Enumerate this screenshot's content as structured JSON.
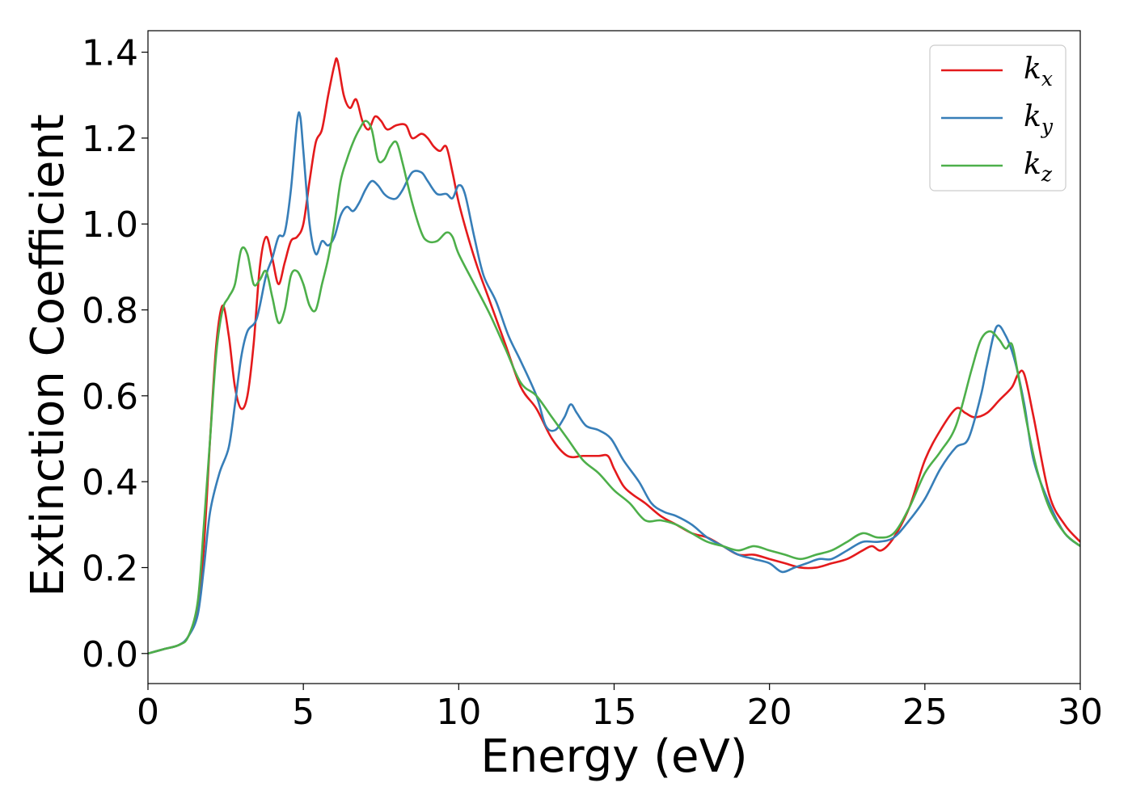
{
  "chart_data": {
    "type": "line",
    "xlabel": "Energy (eV)",
    "ylabel": "Extinction Coefficient",
    "xlim": [
      0,
      30
    ],
    "ylim": [
      -0.07,
      1.45
    ],
    "xticks": [
      0,
      5,
      10,
      15,
      20,
      25,
      30
    ],
    "xtick_labels": [
      "0",
      "5",
      "10",
      "15",
      "20",
      "25",
      "30"
    ],
    "yticks": [
      0.0,
      0.2,
      0.4,
      0.6,
      0.8,
      1.0,
      1.2,
      1.4
    ],
    "ytick_labels": [
      "0.0",
      "0.2",
      "0.4",
      "0.6",
      "0.8",
      "1.0",
      "1.2",
      "1.4"
    ],
    "grid": false,
    "legend_position": "top-right",
    "series": [
      {
        "name": "kx",
        "label_base": "k",
        "label_sub": "x",
        "color": "#e41a1c",
        "x": [
          0,
          0.5,
          1.0,
          1.3,
          1.6,
          1.8,
          2.0,
          2.2,
          2.4,
          2.6,
          2.8,
          3.0,
          3.2,
          3.4,
          3.6,
          3.8,
          4.0,
          4.2,
          4.4,
          4.6,
          4.8,
          5.0,
          5.2,
          5.4,
          5.6,
          5.8,
          6.0,
          6.1,
          6.3,
          6.5,
          6.7,
          6.9,
          7.1,
          7.3,
          7.5,
          7.7,
          8.0,
          8.3,
          8.5,
          8.8,
          9.0,
          9.2,
          9.4,
          9.6,
          9.8,
          10.0,
          10.3,
          10.6,
          11.0,
          11.5,
          12.0,
          12.5,
          13.0,
          13.5,
          14.0,
          14.5,
          14.8,
          15.0,
          15.3,
          15.6,
          16.0,
          16.5,
          17.0,
          17.5,
          18.0,
          18.5,
          19.0,
          19.5,
          20.0,
          20.5,
          21.0,
          21.5,
          22.0,
          22.5,
          23.0,
          23.3,
          23.6,
          24.0,
          24.5,
          25.0,
          25.5,
          26.0,
          26.3,
          26.6,
          27.0,
          27.4,
          27.8,
          28.0,
          28.2,
          28.5,
          29.0,
          29.5,
          30.0
        ],
        "y": [
          0.0,
          0.01,
          0.02,
          0.04,
          0.1,
          0.25,
          0.5,
          0.72,
          0.81,
          0.74,
          0.62,
          0.57,
          0.6,
          0.72,
          0.9,
          0.97,
          0.92,
          0.86,
          0.91,
          0.96,
          0.97,
          1.0,
          1.1,
          1.19,
          1.22,
          1.3,
          1.37,
          1.38,
          1.3,
          1.27,
          1.29,
          1.24,
          1.22,
          1.25,
          1.24,
          1.22,
          1.23,
          1.23,
          1.2,
          1.21,
          1.2,
          1.18,
          1.17,
          1.18,
          1.12,
          1.05,
          0.97,
          0.9,
          0.82,
          0.72,
          0.62,
          0.57,
          0.5,
          0.46,
          0.46,
          0.46,
          0.46,
          0.43,
          0.39,
          0.37,
          0.35,
          0.32,
          0.3,
          0.28,
          0.27,
          0.25,
          0.23,
          0.23,
          0.22,
          0.21,
          0.2,
          0.2,
          0.21,
          0.22,
          0.24,
          0.25,
          0.24,
          0.27,
          0.34,
          0.45,
          0.52,
          0.57,
          0.56,
          0.55,
          0.56,
          0.59,
          0.62,
          0.65,
          0.65,
          0.55,
          0.37,
          0.3,
          0.26
        ]
      },
      {
        "name": "ky",
        "label_base": "k",
        "label_sub": "y",
        "color": "#377eb8",
        "x": [
          0,
          0.5,
          1.0,
          1.3,
          1.6,
          1.8,
          2.0,
          2.3,
          2.6,
          2.8,
          3.0,
          3.2,
          3.5,
          3.8,
          4.0,
          4.2,
          4.4,
          4.6,
          4.8,
          4.9,
          5.0,
          5.2,
          5.4,
          5.6,
          5.8,
          6.0,
          6.2,
          6.4,
          6.6,
          6.8,
          7.0,
          7.2,
          7.4,
          7.6,
          7.8,
          8.0,
          8.2,
          8.5,
          8.8,
          9.0,
          9.3,
          9.6,
          9.8,
          10.0,
          10.2,
          10.5,
          10.8,
          11.2,
          11.6,
          12.0,
          12.5,
          12.8,
          13.1,
          13.4,
          13.6,
          13.8,
          14.1,
          14.5,
          14.9,
          15.3,
          15.8,
          16.2,
          16.6,
          17.0,
          17.5,
          18.0,
          18.5,
          19.0,
          19.5,
          20.0,
          20.4,
          20.8,
          21.2,
          21.6,
          22.0,
          22.5,
          23.0,
          23.5,
          24.0,
          24.5,
          25.0,
          25.5,
          26.0,
          26.4,
          26.8,
          27.0,
          27.3,
          27.6,
          27.9,
          28.2,
          28.5,
          29.0,
          29.5,
          30.0
        ],
        "y": [
          0.0,
          0.01,
          0.02,
          0.04,
          0.09,
          0.2,
          0.33,
          0.42,
          0.48,
          0.58,
          0.69,
          0.75,
          0.78,
          0.88,
          0.92,
          0.97,
          0.98,
          1.08,
          1.24,
          1.25,
          1.17,
          1.0,
          0.93,
          0.96,
          0.95,
          0.97,
          1.02,
          1.04,
          1.03,
          1.05,
          1.08,
          1.1,
          1.09,
          1.07,
          1.06,
          1.06,
          1.08,
          1.12,
          1.12,
          1.1,
          1.07,
          1.07,
          1.06,
          1.09,
          1.07,
          0.97,
          0.88,
          0.82,
          0.74,
          0.68,
          0.6,
          0.53,
          0.52,
          0.55,
          0.58,
          0.56,
          0.53,
          0.52,
          0.5,
          0.45,
          0.4,
          0.35,
          0.33,
          0.32,
          0.3,
          0.27,
          0.25,
          0.23,
          0.22,
          0.21,
          0.19,
          0.2,
          0.21,
          0.22,
          0.22,
          0.24,
          0.26,
          0.26,
          0.27,
          0.31,
          0.36,
          0.43,
          0.48,
          0.5,
          0.6,
          0.67,
          0.76,
          0.74,
          0.68,
          0.58,
          0.45,
          0.35,
          0.28,
          0.25
        ]
      },
      {
        "name": "kz",
        "label_base": "k",
        "label_sub": "z",
        "color": "#4daf4a",
        "x": [
          0,
          0.5,
          1.0,
          1.3,
          1.6,
          1.8,
          2.0,
          2.2,
          2.4,
          2.6,
          2.8,
          3.0,
          3.2,
          3.4,
          3.6,
          3.8,
          4.0,
          4.2,
          4.4,
          4.6,
          4.8,
          5.0,
          5.2,
          5.4,
          5.6,
          5.8,
          6.0,
          6.2,
          6.4,
          6.6,
          6.8,
          7.0,
          7.2,
          7.4,
          7.6,
          7.8,
          8.0,
          8.2,
          8.5,
          8.8,
          9.0,
          9.3,
          9.6,
          9.8,
          10.0,
          10.5,
          11.0,
          11.5,
          12.0,
          12.5,
          13.0,
          13.5,
          14.0,
          14.5,
          15.0,
          15.5,
          16.0,
          16.5,
          17.0,
          17.5,
          18.0,
          18.5,
          19.0,
          19.5,
          20.0,
          20.5,
          21.0,
          21.5,
          22.0,
          22.5,
          23.0,
          23.5,
          24.0,
          24.5,
          25.0,
          25.5,
          26.0,
          26.5,
          26.8,
          27.1,
          27.4,
          27.6,
          27.8,
          28.0,
          28.3,
          28.6,
          29.0,
          29.5,
          30.0
        ],
        "y": [
          0.0,
          0.01,
          0.02,
          0.04,
          0.12,
          0.3,
          0.5,
          0.7,
          0.8,
          0.83,
          0.86,
          0.94,
          0.93,
          0.86,
          0.87,
          0.89,
          0.83,
          0.77,
          0.8,
          0.88,
          0.89,
          0.86,
          0.81,
          0.8,
          0.86,
          0.92,
          1.0,
          1.1,
          1.15,
          1.19,
          1.22,
          1.24,
          1.22,
          1.15,
          1.15,
          1.18,
          1.19,
          1.14,
          1.05,
          0.98,
          0.96,
          0.96,
          0.98,
          0.97,
          0.93,
          0.86,
          0.79,
          0.71,
          0.63,
          0.6,
          0.55,
          0.5,
          0.45,
          0.42,
          0.38,
          0.35,
          0.31,
          0.31,
          0.3,
          0.28,
          0.26,
          0.25,
          0.24,
          0.25,
          0.24,
          0.23,
          0.22,
          0.23,
          0.24,
          0.26,
          0.28,
          0.27,
          0.28,
          0.34,
          0.42,
          0.47,
          0.53,
          0.66,
          0.73,
          0.75,
          0.73,
          0.71,
          0.72,
          0.65,
          0.53,
          0.43,
          0.34,
          0.28,
          0.25
        ]
      }
    ]
  }
}
